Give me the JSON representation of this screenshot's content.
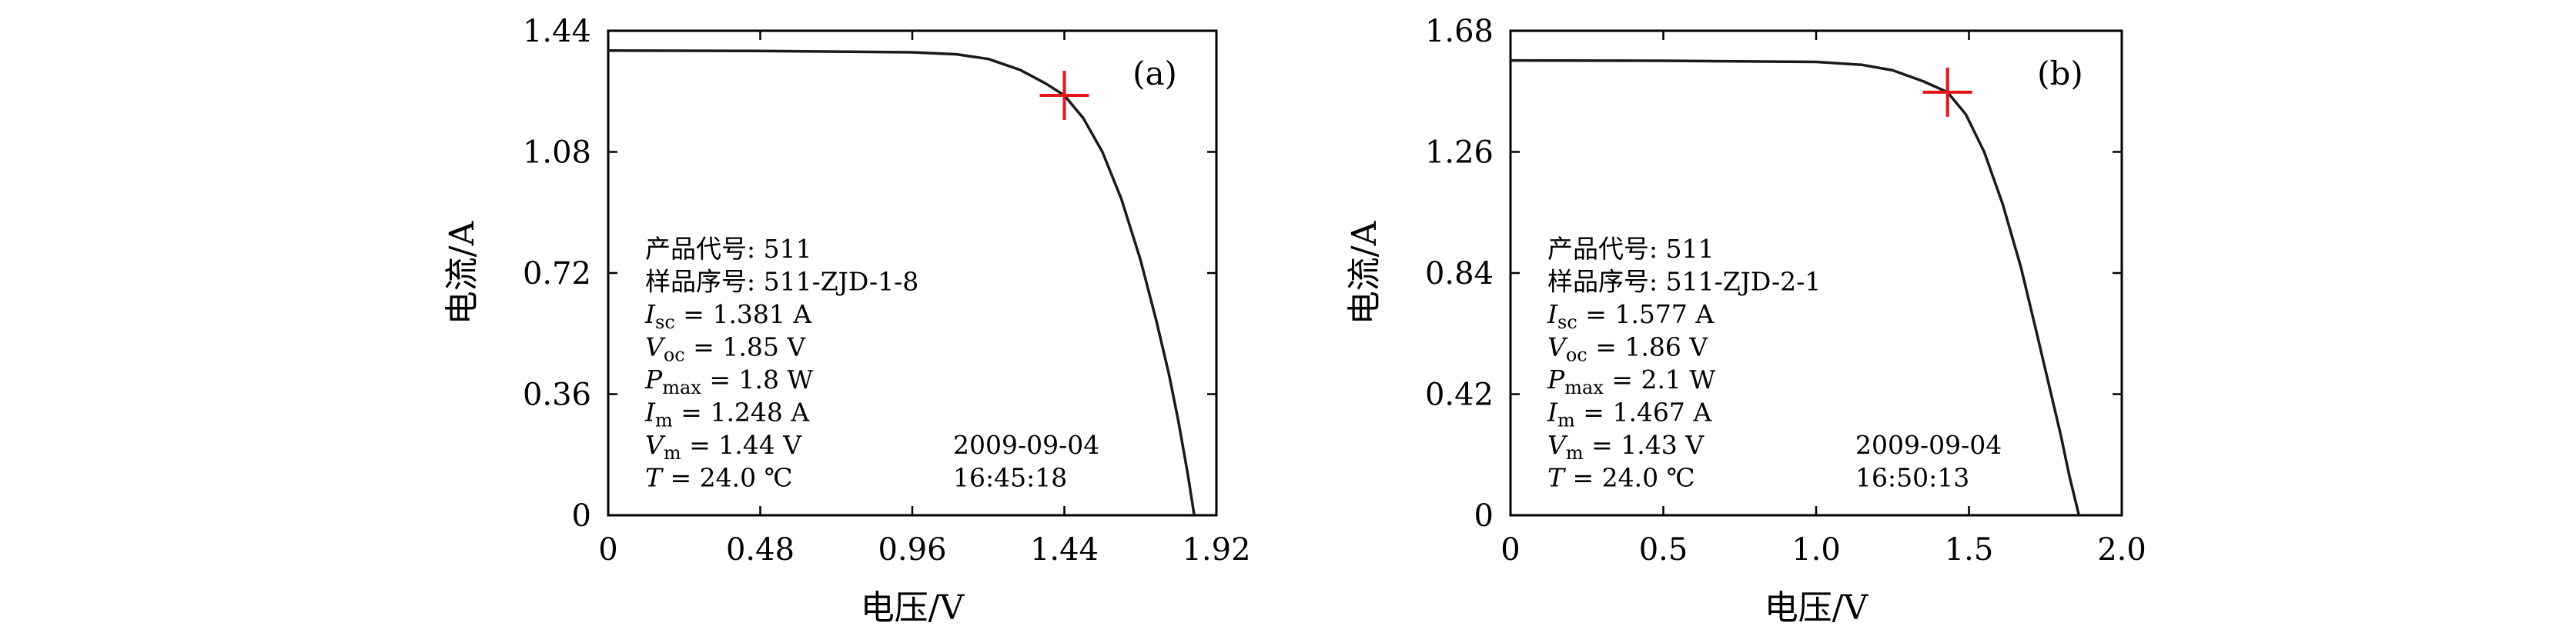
{
  "chart_data": [
    {
      "type": "line",
      "panel_label": "(a)",
      "xlabel": "电压/V",
      "ylabel": "电流/A",
      "xlim": [
        0,
        1.92
      ],
      "ylim": [
        0,
        1.44
      ],
      "xticks": [
        "0",
        "0.48",
        "0.96",
        "1.44",
        "1.92"
      ],
      "yticks": [
        "0",
        "0.36",
        "0.72",
        "1.08",
        "1.44"
      ],
      "series": [
        {
          "x": [
            0,
            0.48,
            0.96,
            1.1,
            1.2,
            1.3,
            1.38,
            1.44,
            1.5,
            1.56,
            1.62,
            1.68,
            1.73,
            1.77,
            1.8,
            1.83,
            1.85
          ],
          "y": [
            1.381,
            1.38,
            1.376,
            1.37,
            1.356,
            1.324,
            1.284,
            1.248,
            1.18,
            1.08,
            0.94,
            0.76,
            0.58,
            0.42,
            0.28,
            0.12,
            0
          ]
        }
      ],
      "marker": {
        "x": 1.44,
        "y": 1.248
      },
      "marker_color": "#e8141c",
      "annotations": [
        "产品代号: 511",
        "样品序号: 511-ZJD-1-8",
        "I_sc = 1.381 A",
        "V_oc = 1.85 V",
        "P_max = 1.8 W",
        "I_m = 1.248 A",
        "V_m = 1.44 V",
        "T = 24.0 ℃"
      ],
      "date": "2009-09-04",
      "time": "16:45:18",
      "legend": "none",
      "grid": false
    },
    {
      "type": "line",
      "panel_label": "(b)",
      "xlabel": "电压/V",
      "ylabel": "电流/A",
      "xlim": [
        0,
        2.0
      ],
      "ylim": [
        0,
        1.68
      ],
      "xticks": [
        "0",
        "0.5",
        "1.0",
        "1.5",
        "2.0"
      ],
      "yticks": [
        "0",
        "0.42",
        "0.84",
        "1.26",
        "1.68"
      ],
      "series": [
        {
          "x": [
            0,
            0.5,
            1.0,
            1.15,
            1.25,
            1.35,
            1.43,
            1.49,
            1.55,
            1.61,
            1.67,
            1.72,
            1.76,
            1.8,
            1.83,
            1.86
          ],
          "y": [
            1.577,
            1.576,
            1.572,
            1.562,
            1.543,
            1.505,
            1.467,
            1.39,
            1.26,
            1.08,
            0.86,
            0.64,
            0.46,
            0.28,
            0.13,
            0
          ]
        }
      ],
      "marker": {
        "x": 1.43,
        "y": 1.467
      },
      "marker_color": "#e8141c",
      "annotations": [
        "产品代号: 511",
        "样品序号: 511-ZJD-2-1",
        "I_sc = 1.577 A",
        "V_oc = 1.86 V",
        "P_max = 2.1 W",
        "I_m = 1.467 A",
        "V_m = 1.43 V",
        "T = 24.0 ℃"
      ],
      "date": "2009-09-04",
      "time": "16:50:13",
      "legend": "none",
      "grid": false
    }
  ]
}
